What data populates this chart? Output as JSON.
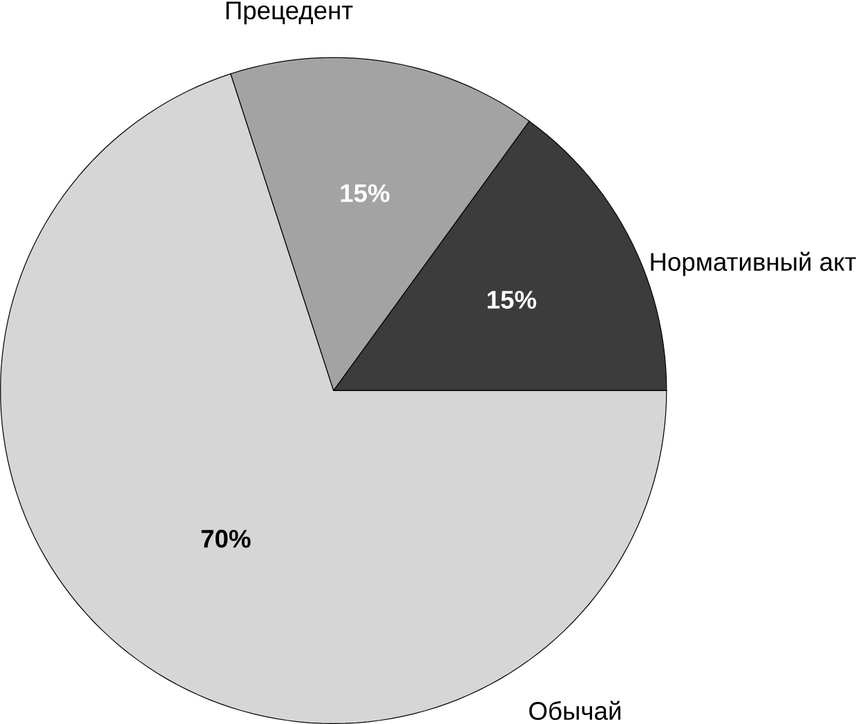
{
  "chart_data": {
    "type": "pie",
    "categories": [
      "Нормативный акт",
      "Прецедент",
      "Обычай"
    ],
    "values": [
      15,
      15,
      70
    ],
    "colors": [
      "#3c3c3c",
      "#a3a3a3",
      "#d6d6d6"
    ],
    "value_labels": [
      "15%",
      "15%",
      "70%"
    ]
  }
}
